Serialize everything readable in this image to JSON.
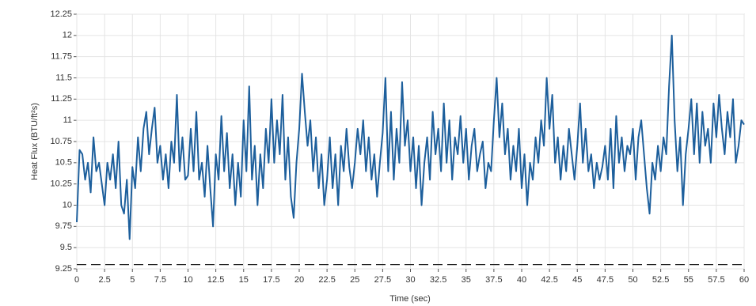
{
  "chart_data": {
    "type": "line",
    "xlabel": "Time (sec)",
    "ylabel": "Heat Flux (BTU/ft²s)",
    "x": [
      0,
      0.25,
      0.5,
      0.75,
      1,
      1.25,
      1.5,
      1.75,
      2,
      2.25,
      2.5,
      2.75,
      3,
      3.25,
      3.5,
      3.75,
      4,
      4.25,
      4.5,
      4.75,
      5,
      5.25,
      5.5,
      5.75,
      6,
      6.25,
      6.5,
      6.75,
      7,
      7.25,
      7.5,
      7.75,
      8,
      8.25,
      8.5,
      8.75,
      9,
      9.25,
      9.5,
      9.75,
      10,
      10.25,
      10.5,
      10.75,
      11,
      11.25,
      11.5,
      11.75,
      12,
      12.25,
      12.5,
      12.75,
      13,
      13.25,
      13.5,
      13.75,
      14,
      14.25,
      14.5,
      14.75,
      15,
      15.25,
      15.5,
      15.75,
      16,
      16.25,
      16.5,
      16.75,
      17,
      17.25,
      17.5,
      17.75,
      18,
      18.25,
      18.5,
      18.75,
      19,
      19.25,
      19.5,
      19.75,
      20,
      20.25,
      20.5,
      20.75,
      21,
      21.25,
      21.5,
      21.75,
      22,
      22.25,
      22.5,
      22.75,
      23,
      23.25,
      23.5,
      23.75,
      24,
      24.25,
      24.5,
      24.75,
      25,
      25.25,
      25.5,
      25.75,
      26,
      26.25,
      26.5,
      26.75,
      27,
      27.25,
      27.5,
      27.75,
      28,
      28.25,
      28.5,
      28.75,
      29,
      29.25,
      29.5,
      29.75,
      30,
      30.25,
      30.5,
      30.75,
      31,
      31.25,
      31.5,
      31.75,
      32,
      32.25,
      32.5,
      32.75,
      33,
      33.25,
      33.5,
      33.75,
      34,
      34.25,
      34.5,
      34.75,
      35,
      35.25,
      35.5,
      35.75,
      36,
      36.25,
      36.5,
      36.75,
      37,
      37.25,
      37.5,
      37.75,
      38,
      38.25,
      38.5,
      38.75,
      39,
      39.25,
      39.5,
      39.75,
      40,
      40.25,
      40.5,
      40.75,
      41,
      41.25,
      41.5,
      41.75,
      42,
      42.25,
      42.5,
      42.75,
      43,
      43.25,
      43.5,
      43.75,
      44,
      44.25,
      44.5,
      44.75,
      45,
      45.25,
      45.5,
      45.75,
      46,
      46.25,
      46.5,
      46.75,
      47,
      47.25,
      47.5,
      47.75,
      48,
      48.25,
      48.5,
      48.75,
      49,
      49.25,
      49.5,
      49.75,
      50,
      50.25,
      50.5,
      50.75,
      51,
      51.25,
      51.5,
      51.75,
      52,
      52.25,
      52.5,
      52.75,
      53,
      53.25,
      53.5,
      53.75,
      54,
      54.25,
      54.5,
      54.75,
      55,
      55.25,
      55.5,
      55.75,
      56,
      56.25,
      56.5,
      56.75,
      57,
      57.25,
      57.5,
      57.75,
      58,
      58.25,
      58.5,
      58.75,
      59,
      59.25,
      59.5,
      59.75,
      60
    ],
    "series": [
      {
        "color": "#1d5f9c",
        "values": [
          9.8,
          10.65,
          10.6,
          10.3,
          10.5,
          10.15,
          10.8,
          10.4,
          10.5,
          10.25,
          10.0,
          10.5,
          10.3,
          10.6,
          10.2,
          10.75,
          10.0,
          9.9,
          10.3,
          9.6,
          10.45,
          10.2,
          10.8,
          10.4,
          10.9,
          11.1,
          10.6,
          10.9,
          11.15,
          10.5,
          10.7,
          10.3,
          10.6,
          10.2,
          10.75,
          10.5,
          11.3,
          10.4,
          10.8,
          10.3,
          10.35,
          10.9,
          10.4,
          11.1,
          10.3,
          10.5,
          10.1,
          10.7,
          10.2,
          9.75,
          10.6,
          10.3,
          11.05,
          10.4,
          10.85,
          10.2,
          10.6,
          10.0,
          10.5,
          10.1,
          11.0,
          10.4,
          11.4,
          10.3,
          10.7,
          10.0,
          10.6,
          10.2,
          10.9,
          10.5,
          11.25,
          10.5,
          11.0,
          10.6,
          11.3,
          10.3,
          10.8,
          10.1,
          9.85,
          10.5,
          10.9,
          11.55,
          11.1,
          10.7,
          11.0,
          10.4,
          10.8,
          10.2,
          10.6,
          10.0,
          10.3,
          10.8,
          10.2,
          10.6,
          10.0,
          10.7,
          10.4,
          10.9,
          10.45,
          10.2,
          10.5,
          10.9,
          10.6,
          11.0,
          10.4,
          10.8,
          10.3,
          10.6,
          10.1,
          10.5,
          10.85,
          11.5,
          10.4,
          11.1,
          10.3,
          10.9,
          10.5,
          11.45,
          10.7,
          11.0,
          10.4,
          10.8,
          10.2,
          10.7,
          10.0,
          10.5,
          10.8,
          10.3,
          11.1,
          10.6,
          10.9,
          10.4,
          11.2,
          10.5,
          11.0,
          10.3,
          10.8,
          10.6,
          11.05,
          10.5,
          10.9,
          10.3,
          10.7,
          10.9,
          10.4,
          10.6,
          10.75,
          10.2,
          10.5,
          10.4,
          11.0,
          11.5,
          10.8,
          11.2,
          10.6,
          10.9,
          10.3,
          10.7,
          10.4,
          10.9,
          10.2,
          10.6,
          10.0,
          10.5,
          10.3,
          10.8,
          10.5,
          11.0,
          10.7,
          11.5,
          10.9,
          11.3,
          10.5,
          10.8,
          10.3,
          10.7,
          10.4,
          10.9,
          10.6,
          10.3,
          10.7,
          11.2,
          10.5,
          10.9,
          10.4,
          10.6,
          10.2,
          10.5,
          10.3,
          10.45,
          10.7,
          10.3,
          10.9,
          10.2,
          11.05,
          10.5,
          10.8,
          10.4,
          10.7,
          10.6,
          10.9,
          10.3,
          10.8,
          11.0,
          10.6,
          10.2,
          9.9,
          10.5,
          10.3,
          10.7,
          10.4,
          10.8,
          10.6,
          11.4,
          12.0,
          11.0,
          10.4,
          10.8,
          10.0,
          10.6,
          10.9,
          11.25,
          10.6,
          11.2,
          10.5,
          11.1,
          10.7,
          10.9,
          10.5,
          11.2,
          10.8,
          11.3,
          10.9,
          10.6,
          11.1,
          10.8,
          11.25,
          10.5,
          10.7,
          11.0,
          10.95
        ]
      }
    ],
    "hline": 9.3,
    "xlim": [
      0,
      60
    ],
    "xticks": [
      0,
      2.5,
      5,
      7.5,
      10,
      12.5,
      15,
      17.5,
      20,
      22.5,
      25,
      27.5,
      30,
      32.5,
      35,
      37.5,
      40,
      42.5,
      45,
      47.5,
      50,
      52.5,
      55,
      57.5,
      60
    ],
    "ylim": [
      9.25,
      12.25
    ],
    "yticks": [
      9.25,
      9.5,
      9.75,
      10,
      10.25,
      10.5,
      10.75,
      11,
      11.25,
      11.5,
      11.75,
      12,
      12.25
    ],
    "grid": true
  }
}
